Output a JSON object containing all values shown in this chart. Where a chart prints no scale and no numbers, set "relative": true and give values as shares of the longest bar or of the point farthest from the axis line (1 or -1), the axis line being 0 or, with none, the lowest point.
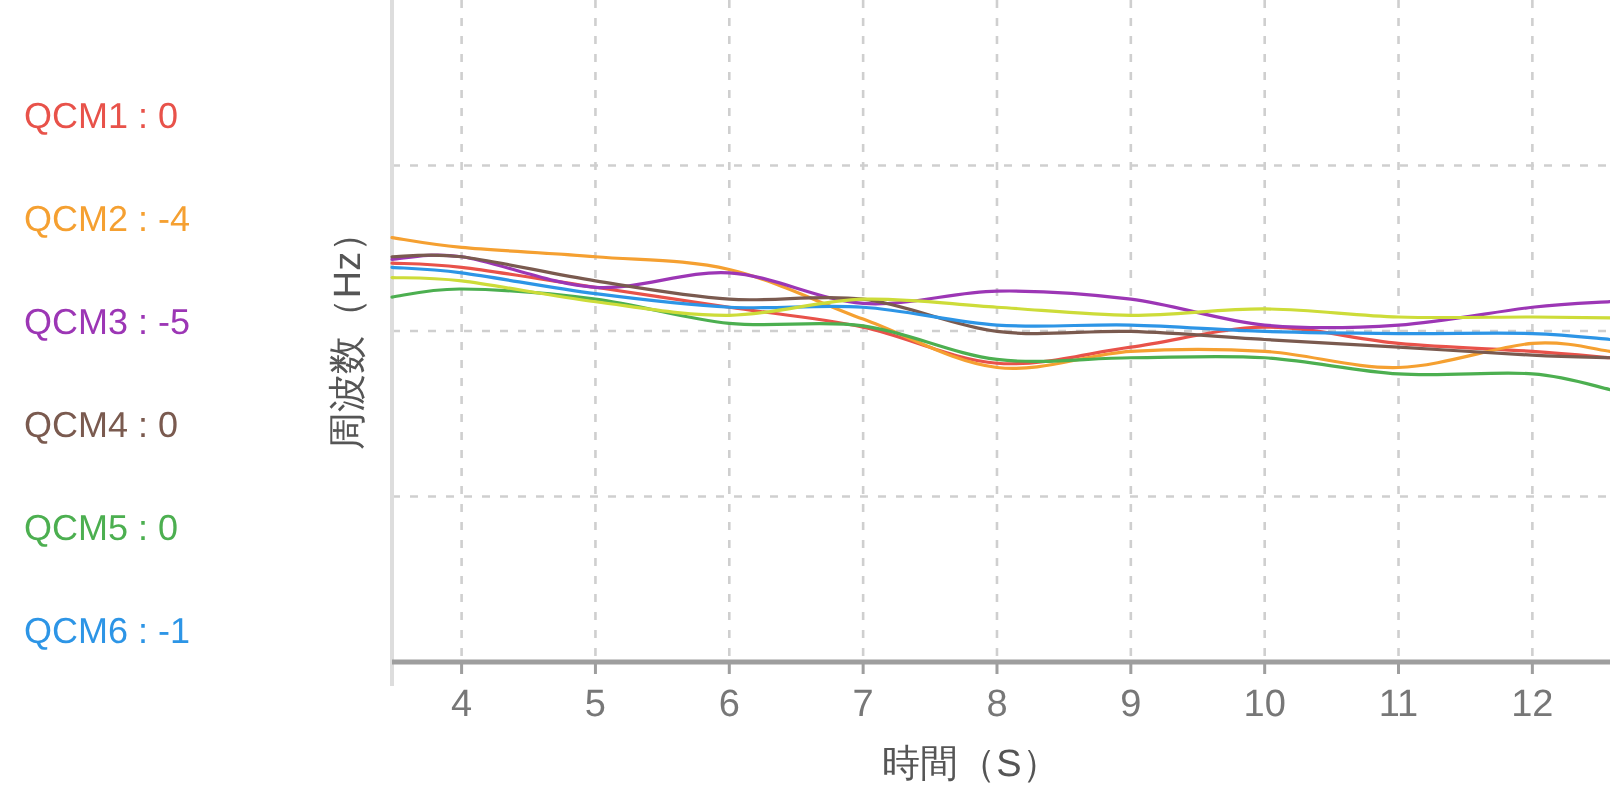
{
  "chart_data": {
    "type": "line",
    "xlabel": "時間（S）",
    "ylabel": "周波数（Hz）",
    "relative": true,
    "grid": true,
    "legend": "left",
    "x": [
      3.48,
      4,
      5,
      6,
      7,
      8,
      9,
      10,
      11,
      12,
      12.58
    ],
    "xlim": [
      3.48,
      12.58
    ],
    "xticks": [
      4,
      5,
      6,
      7,
      8,
      9,
      10,
      11,
      12
    ],
    "series": [
      {
        "name": "QCM1 : 0",
        "color": "#e8524a",
        "values": [
          0.94,
          0.93,
          0.883,
          0.836,
          0.789,
          0.704,
          0.742,
          0.789,
          0.751,
          0.732,
          0.717
        ]
      },
      {
        "name": "QCM2 : -4",
        "color": "#f5a031",
        "values": [
          1.0,
          0.977,
          0.955,
          0.925,
          0.808,
          0.694,
          0.732,
          0.732,
          0.694,
          0.751,
          0.732
        ]
      },
      {
        "name": "QCM3 : -5",
        "color": "#9c36b5",
        "values": [
          0.949,
          0.955,
          0.883,
          0.917,
          0.845,
          0.874,
          0.855,
          0.794,
          0.794,
          0.836,
          0.849
        ]
      },
      {
        "name": "QCM4 : 0",
        "color": "#7a5a4f",
        "values": [
          0.955,
          0.955,
          0.898,
          0.855,
          0.855,
          0.779,
          0.779,
          0.76,
          0.742,
          0.723,
          0.717
        ]
      },
      {
        "name": "QCM5 : 0",
        "color": "#4caf50",
        "values": [
          0.86,
          0.879,
          0.855,
          0.798,
          0.792,
          0.713,
          0.717,
          0.717,
          0.679,
          0.679,
          0.642
        ]
      },
      {
        "name": "QCM6 : -1",
        "color": "#2d95e6",
        "values": [
          0.93,
          0.917,
          0.868,
          0.836,
          0.836,
          0.794,
          0.794,
          0.779,
          0.774,
          0.774,
          0.76
        ]
      },
      {
        "color": "#cddc39",
        "values": [
          0.906,
          0.898,
          0.849,
          0.817,
          0.855,
          0.836,
          0.817,
          0.832,
          0.813,
          0.813,
          0.811
        ]
      }
    ]
  }
}
